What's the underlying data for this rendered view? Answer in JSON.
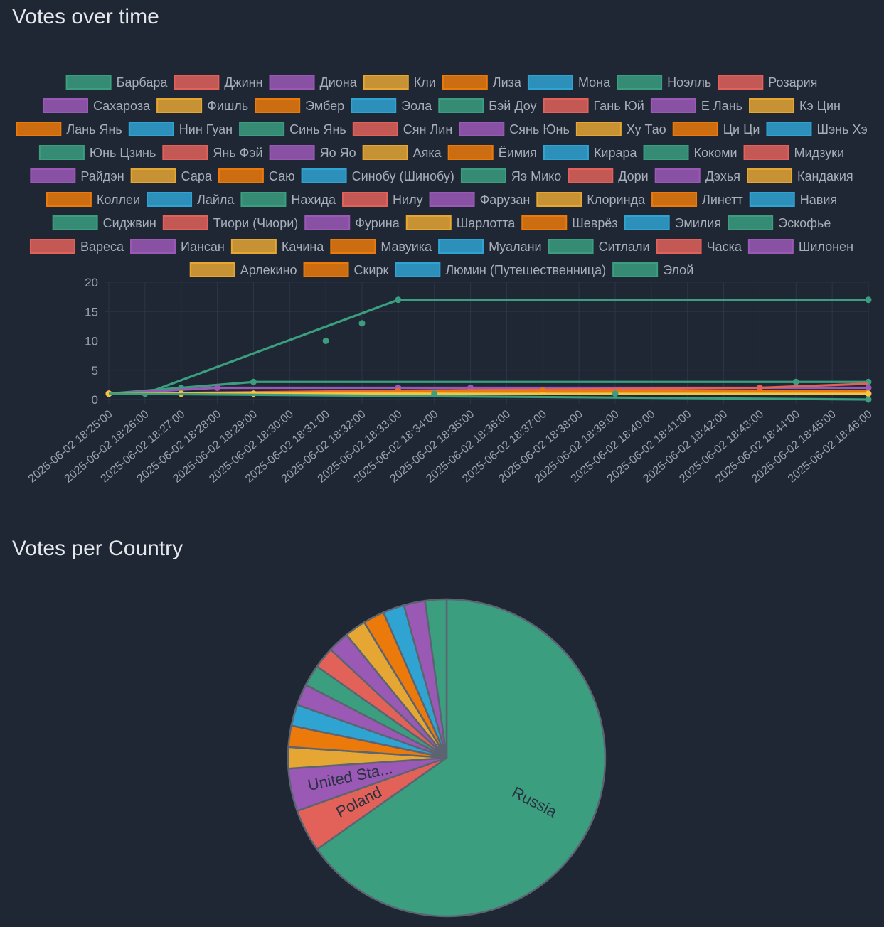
{
  "page": {
    "line_title": "Votes over time",
    "pie_title": "Votes per Country"
  },
  "palette": [
    "#3a9e7f",
    "#e2625a",
    "#9b59b6",
    "#e5a633",
    "#ec7a0a",
    "#2fa3d2"
  ],
  "chart_data": [
    {
      "type": "line",
      "title": "Votes over time",
      "y_ticks": [
        0,
        5,
        10,
        15,
        20
      ],
      "ylim": [
        0,
        20
      ],
      "grid": true,
      "legend_position": "top",
      "x": [
        "2025-06-02 18:25:00",
        "2025-06-02 18:26:00",
        "2025-06-02 18:27:00",
        "2025-06-02 18:28:00",
        "2025-06-02 18:29:00",
        "2025-06-02 18:30:00",
        "2025-06-02 18:31:00",
        "2025-06-02 18:32:00",
        "2025-06-02 18:33:00",
        "2025-06-02 18:34:00",
        "2025-06-02 18:35:00",
        "2025-06-02 18:36:00",
        "2025-06-02 18:37:00",
        "2025-06-02 18:38:00",
        "2025-06-02 18:39:00",
        "2025-06-02 18:40:00",
        "2025-06-02 18:41:00",
        "2025-06-02 18:42:00",
        "2025-06-02 18:43:00",
        "2025-06-02 18:44:00",
        "2025-06-02 18:45:00",
        "2025-06-02 18:46:00"
      ],
      "legend": [
        "Барбара",
        "Джинн",
        "Диона",
        "Кли",
        "Лиза",
        "Мона",
        "Ноэлль",
        "Розария",
        "Сахароза",
        "Фишль",
        "Эмбер",
        "Эола",
        "Бэй Доу",
        "Гань Юй",
        "Е Лань",
        "Кэ Цин",
        "Лань Янь",
        "Нин Гуан",
        "Синь Янь",
        "Сян Лин",
        "Сянь Юнь",
        "Ху Тао",
        "Ци Ци",
        "Шэнь Хэ",
        "Юнь Цзинь",
        "Янь Фэй",
        "Яо Яо",
        "Аяка",
        "Ёимия",
        "Кирара",
        "Кокоми",
        "Мидзуки",
        "Райдэн",
        "Сара",
        "Саю",
        "Синобу (Шинобу)",
        "Яэ Мико",
        "Дори",
        "Дэхья",
        "Кандакия",
        "Коллеи",
        "Лайла",
        "Нахида",
        "Нилу",
        "Фарузан",
        "Клоринда",
        "Линетт",
        "Навия",
        "Сиджвин",
        "Тиори (Чиори)",
        "Фурина",
        "Шарлотта",
        "Шеврёз",
        "Эмилия",
        "Эскофье",
        "Вареса",
        "Иансан",
        "Качина",
        "Мавуика",
        "Муалани",
        "Ситлали",
        "Часка",
        "Шилонен",
        "Арлекино",
        "Скирк",
        "Люмин (Путешественница)",
        "Элой"
      ],
      "series": [
        {
          "name": "Арлекино",
          "color": "#3a9e7f",
          "points": [
            [
              0,
              1
            ],
            [
              1,
              1
            ],
            [
              8,
              17
            ],
            [
              21,
              17
            ]
          ],
          "markers": [
            [
              0,
              1
            ],
            [
              1,
              1
            ],
            [
              6,
              10
            ],
            [
              7,
              13
            ],
            [
              8,
              17
            ],
            [
              21,
              17
            ]
          ]
        },
        {
          "name": "Навия",
          "color": "#3a9e7f",
          "points": [
            [
              0,
              1
            ],
            [
              2,
              2
            ],
            [
              4,
              3
            ],
            [
              21,
              3
            ]
          ],
          "markers": [
            [
              0,
              1
            ],
            [
              2,
              2
            ],
            [
              4,
              3
            ],
            [
              19,
              3
            ],
            [
              21,
              3
            ]
          ]
        },
        {
          "name": "Скирк",
          "color": "#9b59b6",
          "points": [
            [
              0,
              1
            ],
            [
              3,
              2
            ],
            [
              8,
              2
            ],
            [
              21,
              2
            ]
          ],
          "markers": [
            [
              0,
              1
            ],
            [
              3,
              2
            ],
            [
              8,
              2
            ],
            [
              10,
              2
            ],
            [
              21,
              2
            ]
          ]
        },
        {
          "name": "Эмилия",
          "color": "#e2625a",
          "points": [
            [
              0,
              1
            ],
            [
              8,
              1.5
            ],
            [
              18,
              2
            ],
            [
              21,
              2.7
            ]
          ],
          "markers": [
            [
              0,
              1
            ],
            [
              8,
              1.5
            ],
            [
              18,
              2
            ]
          ]
        },
        {
          "name": "Кли",
          "color": "#ec7a0a",
          "points": [
            [
              0,
              1
            ],
            [
              12,
              1.5
            ],
            [
              21,
              1.5
            ]
          ],
          "markers": [
            [
              0,
              1
            ],
            [
              2,
              1
            ],
            [
              12,
              1.5
            ]
          ]
        },
        {
          "name": "Элой",
          "color": "#f6c342",
          "points": [
            [
              0,
              1
            ],
            [
              21,
              1
            ]
          ],
          "markers": [
            [
              0,
              1
            ],
            [
              2,
              1
            ],
            [
              4,
              1
            ],
            [
              21,
              1
            ]
          ]
        },
        {
          "name": "Люмин (Путешественница)",
          "color": "#3a9e7f",
          "points": [
            [
              0,
              1
            ],
            [
              21,
              0
            ]
          ],
          "markers": [
            [
              9,
              1
            ],
            [
              14,
              1
            ],
            [
              21,
              0
            ]
          ]
        }
      ]
    },
    {
      "type": "pie",
      "title": "Votes per Country",
      "slices": [
        {
          "label": "Russia",
          "value": 60,
          "color": "#3a9e7f",
          "show_label": true
        },
        {
          "label": "Poland",
          "value": 4,
          "color": "#e2625a",
          "show_label": true
        },
        {
          "label": "United Sta...",
          "value": 4,
          "color": "#9b59b6",
          "show_label": true
        },
        {
          "label": "",
          "value": 2,
          "color": "#e5a633",
          "show_label": false
        },
        {
          "label": "",
          "value": 2,
          "color": "#ec7a0a",
          "show_label": false
        },
        {
          "label": "",
          "value": 2,
          "color": "#2fa3d2",
          "show_label": false
        },
        {
          "label": "",
          "value": 2,
          "color": "#9b59b6",
          "show_label": false
        },
        {
          "label": "",
          "value": 2,
          "color": "#3a9e7f",
          "show_label": false
        },
        {
          "label": "",
          "value": 2,
          "color": "#e2625a",
          "show_label": false
        },
        {
          "label": "",
          "value": 2,
          "color": "#9b59b6",
          "show_label": false
        },
        {
          "label": "",
          "value": 2,
          "color": "#e5a633",
          "show_label": false
        },
        {
          "label": "",
          "value": 2,
          "color": "#ec7a0a",
          "show_label": false
        },
        {
          "label": "",
          "value": 2,
          "color": "#2fa3d2",
          "show_label": false
        },
        {
          "label": "",
          "value": 2,
          "color": "#9b59b6",
          "show_label": false
        },
        {
          "label": "",
          "value": 2,
          "color": "#3a9e7f",
          "show_label": false
        }
      ]
    }
  ]
}
